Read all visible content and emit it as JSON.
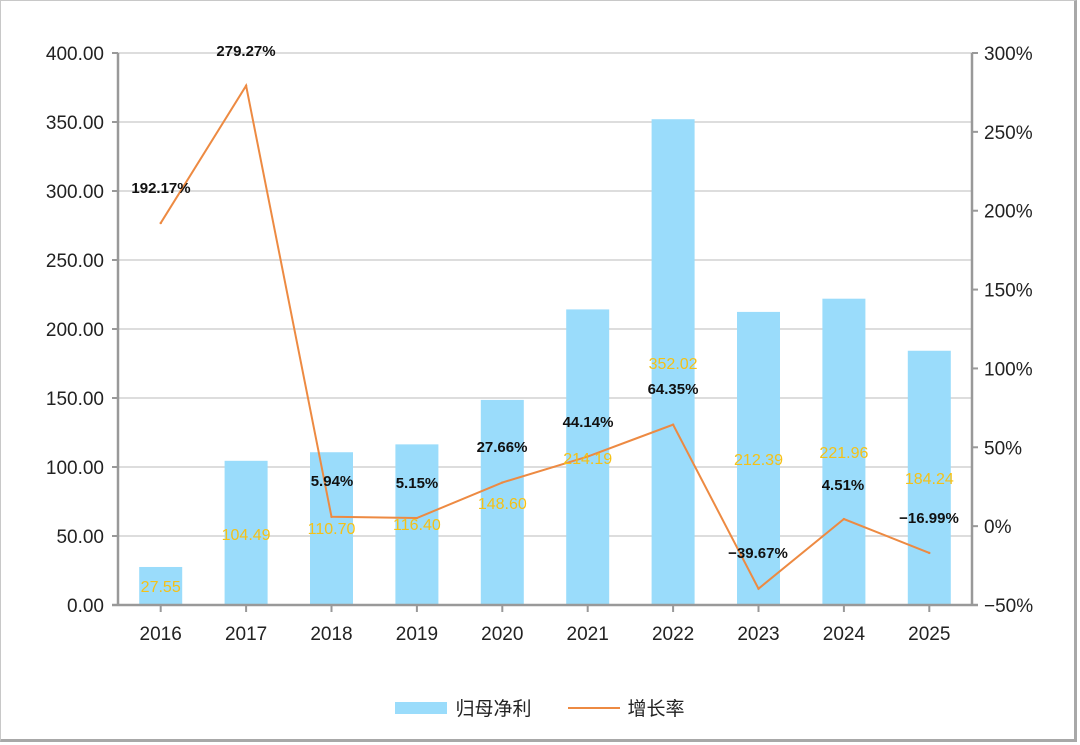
{
  "chart_data": {
    "type": "bar+line",
    "categories": [
      "2016",
      "2017",
      "2018",
      "2019",
      "2020",
      "2021",
      "2022",
      "2023",
      "2024",
      "2025"
    ],
    "series": [
      {
        "name": "归母净利",
        "type": "bar",
        "axis": "left",
        "values": [
          27.55,
          104.49,
          110.7,
          116.4,
          148.6,
          214.19,
          352.02,
          212.39,
          221.96,
          184.24
        ],
        "labels": [
          "27.55",
          "104.49",
          "110.70",
          "116.40",
          "148.60",
          "214.19",
          "352.02",
          "212.39",
          "221.96",
          "184.24"
        ],
        "color": "#9adcfb",
        "label_color": "#f5c116"
      },
      {
        "name": "增长率",
        "type": "line",
        "axis": "right",
        "values": [
          192.17,
          279.27,
          5.94,
          5.15,
          27.66,
          44.14,
          64.35,
          -39.67,
          4.51,
          -16.99
        ],
        "labels": [
          "192.17%",
          "279.27%",
          "5.94%",
          "5.15%",
          "27.66%",
          "44.14%",
          "64.35%",
          "−39.67%",
          "4.51%",
          "−16.99%"
        ],
        "color": "#ed8a42"
      }
    ],
    "left_axis": {
      "min": 0,
      "max": 400,
      "ticks": [
        0,
        50,
        100,
        150,
        200,
        250,
        300,
        350,
        400
      ],
      "tick_labels": [
        "0.00",
        "50.00",
        "100.00",
        "150.00",
        "200.00",
        "250.00",
        "300.00",
        "350.00",
        "400.00"
      ]
    },
    "right_axis": {
      "min": -50,
      "max": 300,
      "ticks": [
        -50,
        0,
        50,
        100,
        150,
        200,
        250,
        300
      ],
      "tick_labels": [
        "−50%",
        "0%",
        "50%",
        "100%",
        "150%",
        "200%",
        "250%",
        "300%"
      ]
    },
    "grid": true,
    "legend": {
      "position": "bottom",
      "entries": [
        "归母净利",
        "增长率"
      ]
    }
  },
  "colors": {
    "bar": "#9adcfb",
    "line": "#ed8a42",
    "bar_label": "#f5c116",
    "grid": "#dddddd",
    "axis": "#999999"
  }
}
